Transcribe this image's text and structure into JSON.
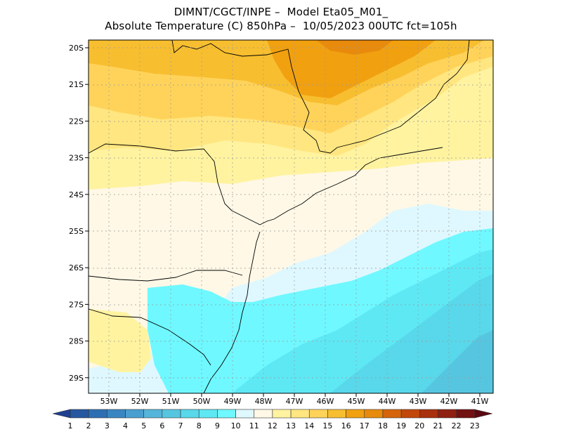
{
  "title_line1": "DIMNT/CGCT/INPE –  Model Eta05_M01_",
  "title_line2": "Absolute Temperature (C) 850hPa –  10/05/2023 00UTC fct=105h",
  "map": {
    "lat_ticks": [
      "20S",
      "21S",
      "22S",
      "23S",
      "24S",
      "25S",
      "26S",
      "27S",
      "28S",
      "29S"
    ],
    "lon_ticks": [
      "53W",
      "52W",
      "51W",
      "50W",
      "49W",
      "48W",
      "47W",
      "46W",
      "45W",
      "44W",
      "43W",
      "42W",
      "41W"
    ]
  },
  "colorbar": {
    "labels": [
      "1",
      "2",
      "3",
      "4",
      "5",
      "6",
      "7",
      "8",
      "9",
      "10",
      "11",
      "12",
      "13",
      "14",
      "15",
      "16",
      "17",
      "18",
      "19",
      "20",
      "21",
      "22",
      "23"
    ],
    "colors": [
      "#1f3f8f",
      "#25589f",
      "#2e6fb3",
      "#3a86c2",
      "#4a9fd0",
      "#55b5da",
      "#56c6e0",
      "#58d8ea",
      "#5ee8f4",
      "#6ff8ff",
      "#dff8ff",
      "#fff8e6",
      "#fff3a0",
      "#ffe680",
      "#ffd35a",
      "#f7be30",
      "#f1a010",
      "#e88a0c",
      "#d6640a",
      "#c2470a",
      "#a8300c",
      "#8f1f10",
      "#731012",
      "#5a0812"
    ]
  }
}
